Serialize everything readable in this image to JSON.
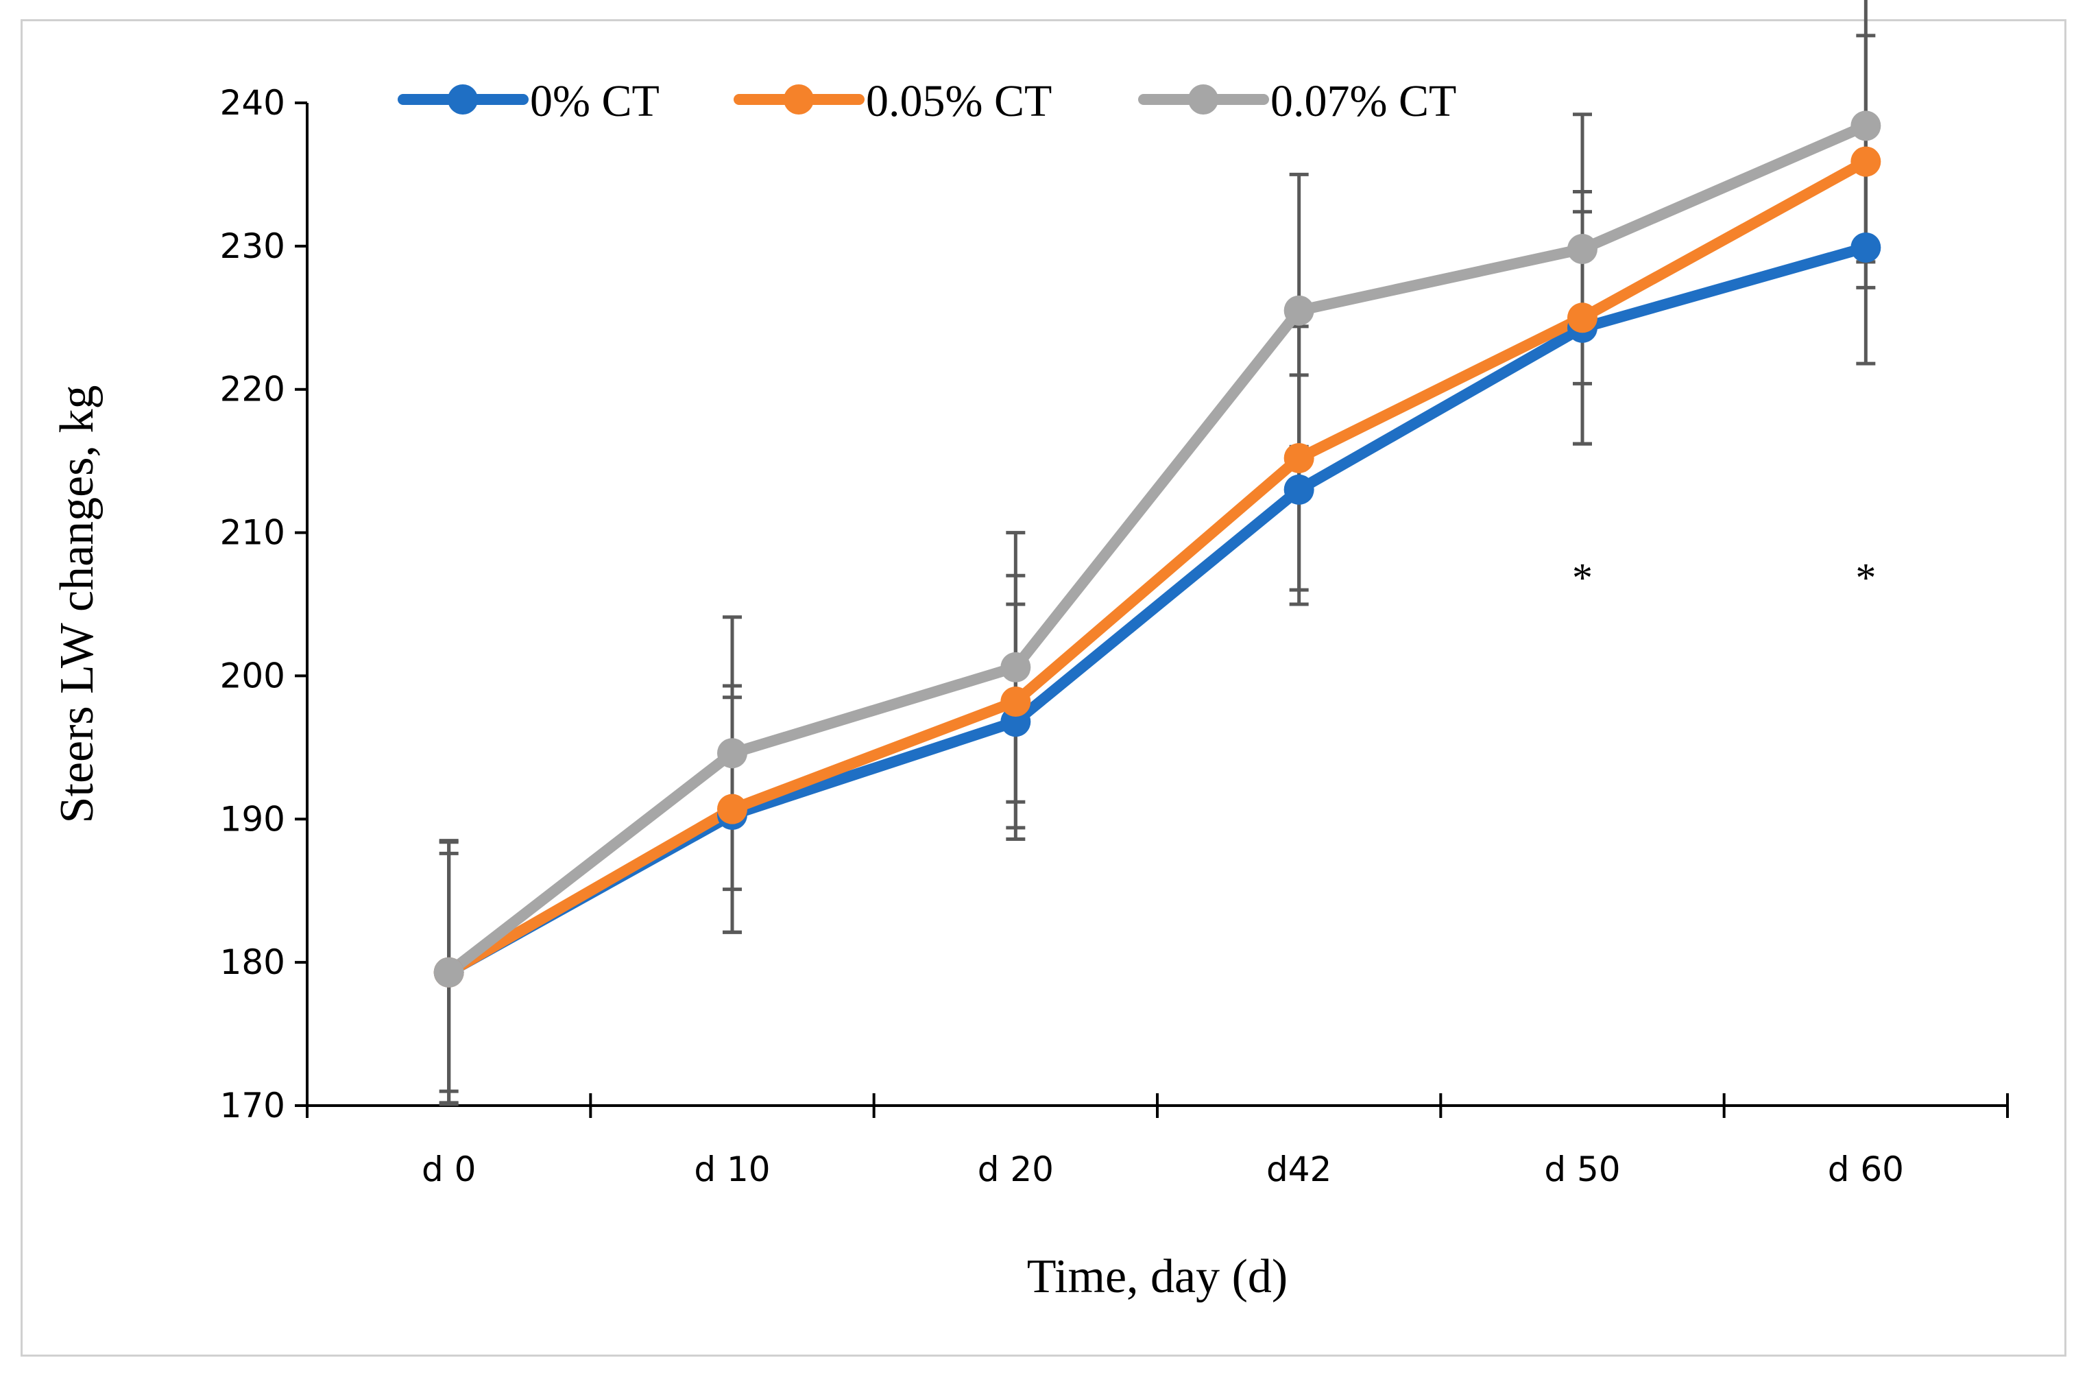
{
  "chart_data": {
    "type": "line",
    "title": "",
    "xlabel": "Time, day (d)",
    "ylabel": "Steers LW changes, kg",
    "categories": [
      "d 0",
      "d 10",
      "d 20",
      "d42",
      "d 50",
      "d 60"
    ],
    "ylim": [
      170,
      240
    ],
    "yticks": [
      170,
      180,
      190,
      200,
      210,
      220,
      230,
      240
    ],
    "legend_position": "top",
    "grid": false,
    "series": [
      {
        "name": "0% CT",
        "color": "#1f6fc4",
        "values": [
          179.3,
          190.3,
          196.8,
          213.0,
          224.3,
          229.9
        ],
        "error": [
          8.3,
          8.2,
          8.2,
          8.0,
          8.1,
          8.1
        ]
      },
      {
        "name": "0.05% CT",
        "color": "#f5822a",
        "values": [
          179.3,
          190.7,
          198.2,
          215.2,
          225.0,
          235.9
        ],
        "error": [
          9.2,
          8.6,
          8.8,
          9.2,
          8.8,
          8.8
        ]
      },
      {
        "name": "0.07% CT",
        "color": "#a6a6a6",
        "values": [
          179.3,
          194.6,
          200.6,
          225.5,
          229.8,
          238.4
        ],
        "error": [
          9.1,
          9.5,
          9.4,
          9.5,
          9.4,
          9.5
        ]
      }
    ],
    "annotations": [
      {
        "category": "d 50",
        "text": "*",
        "y": 207.8
      },
      {
        "category": "d 60",
        "text": "*",
        "y": 207.8
      }
    ]
  }
}
